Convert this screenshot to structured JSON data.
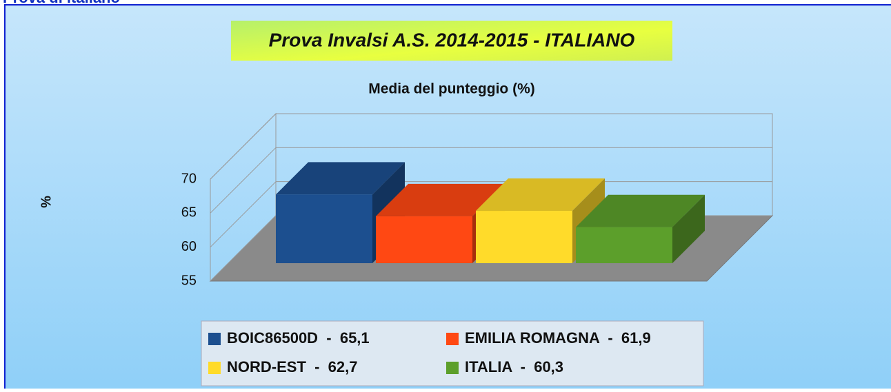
{
  "heading": "Prova di italiano",
  "chart_data": {
    "type": "bar3d",
    "title": "Prova Invalsi A.S. 2014-2015 - ITALIANO",
    "subtitle": "Media del punteggio  (%)",
    "y_label": "%",
    "ylim": [
      55,
      70
    ],
    "yticks": [
      55,
      60,
      65,
      70
    ],
    "grid": true,
    "series": [
      {
        "name": "BOIC86500D  -  65,1",
        "color": "#1c4f8f",
        "values": [
          65.1
        ]
      },
      {
        "name": "EMILIA ROMAGNA  -  61,9",
        "color": "#ff4813",
        "values": [
          61.9
        ]
      },
      {
        "name": "NORD-EST  -  62,7",
        "color": "#ffdb2a",
        "values": [
          62.7
        ]
      },
      {
        "name": "ITALIA  -  60,3",
        "color": "#5c9f2b",
        "values": [
          60.3
        ]
      }
    ]
  }
}
